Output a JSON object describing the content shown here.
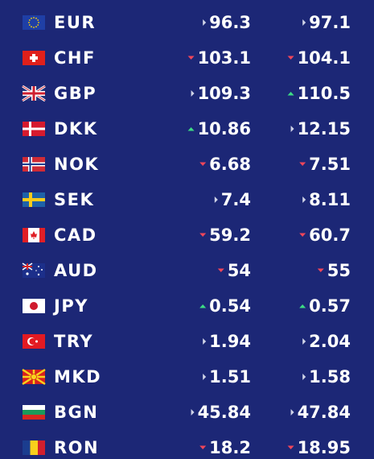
{
  "rates": [
    {
      "code": "EUR",
      "buy": "96.3",
      "buy_trend": "flat",
      "sell": "97.1",
      "sell_trend": "flat"
    },
    {
      "code": "CHF",
      "buy": "103.1",
      "buy_trend": "down",
      "sell": "104.1",
      "sell_trend": "down"
    },
    {
      "code": "GBP",
      "buy": "109.3",
      "buy_trend": "flat",
      "sell": "110.5",
      "sell_trend": "up"
    },
    {
      "code": "DKK",
      "buy": "10.86",
      "buy_trend": "up",
      "sell": "12.15",
      "sell_trend": "flat"
    },
    {
      "code": "NOK",
      "buy": "6.68",
      "buy_trend": "down",
      "sell": "7.51",
      "sell_trend": "down"
    },
    {
      "code": "SEK",
      "buy": "7.4",
      "buy_trend": "flat",
      "sell": "8.11",
      "sell_trend": "flat"
    },
    {
      "code": "CAD",
      "buy": "59.2",
      "buy_trend": "down",
      "sell": "60.7",
      "sell_trend": "down"
    },
    {
      "code": "AUD",
      "buy": "54",
      "buy_trend": "down",
      "sell": "55",
      "sell_trend": "down"
    },
    {
      "code": "JPY",
      "buy": "0.54",
      "buy_trend": "up",
      "sell": "0.57",
      "sell_trend": "up"
    },
    {
      "code": "TRY",
      "buy": "1.94",
      "buy_trend": "flat",
      "sell": "2.04",
      "sell_trend": "flat"
    },
    {
      "code": "MKD",
      "buy": "1.51",
      "buy_trend": "flat",
      "sell": "1.58",
      "sell_trend": "flat"
    },
    {
      "code": "BGN",
      "buy": "45.84",
      "buy_trend": "flat",
      "sell": "47.84",
      "sell_trend": "flat"
    },
    {
      "code": "RON",
      "buy": "18.2",
      "buy_trend": "down",
      "sell": "18.95",
      "sell_trend": "down"
    }
  ]
}
